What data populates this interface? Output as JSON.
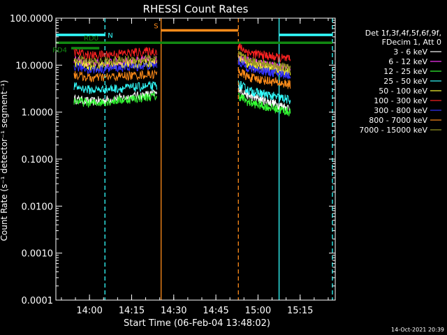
{
  "chart_data": {
    "type": "line",
    "title": "RHESSI Count Rates",
    "xlabel": "Start Time (06-Feb-04 13:48:02)",
    "ylabel": "Count Rate (s⁻¹ detector⁻¹ segment⁻¹)",
    "xscale": "time",
    "yscale": "log",
    "xlim": [
      "13:48:02",
      "15:27:30"
    ],
    "ylim": [
      0.0001,
      100
    ],
    "x_ticks": [
      "14:00",
      "14:15",
      "14:30",
      "14:45",
      "15:00",
      "15:15"
    ],
    "y_ticks": [
      "0.0001",
      "0.0010",
      "0.0100",
      "0.1000",
      "1.0000",
      "10.0000",
      "100.0000"
    ],
    "legend": {
      "placement": "right",
      "header": [
        "Det 1f,3f,4f,5f,6f,9f,",
        "FDecim 1, Att 0"
      ],
      "entries": [
        {
          "label": "3 - 6 keV",
          "color": "#ffffff"
        },
        {
          "label": "6 - 12 keV",
          "color": "#ff33ff"
        },
        {
          "label": "12 - 25 keV",
          "color": "#33ff33"
        },
        {
          "label": "25 - 50 keV",
          "color": "#33ffff"
        },
        {
          "label": "50 - 100 keV",
          "color": "#ffff33"
        },
        {
          "label": "100 - 300 keV",
          "color": "#ff2222"
        },
        {
          "label": "300 - 800 keV",
          "color": "#3333ff"
        },
        {
          "label": "800 - 7000 keV",
          "color": "#ff8c1a"
        },
        {
          "label": "7000 - 15000 keV",
          "color": "#999922"
        }
      ]
    },
    "series": [
      {
        "name": "3 - 6 keV",
        "color": "#ffffff",
        "segments": [
          {
            "start": "13:54:30",
            "end": "14:24:00",
            "v0": 1.5,
            "v1": 2.5
          },
          {
            "start": "14:53:00",
            "end": "15:11:30",
            "v0": 2.6,
            "v1": 1.2
          }
        ]
      },
      {
        "name": "6 - 12 keV",
        "color": "#ff33ff",
        "segments": [
          {
            "start": "13:54:30",
            "end": "14:24:00",
            "v0": 10.0,
            "v1": 13.0
          },
          {
            "start": "14:53:00",
            "end": "15:11:30",
            "v0": 13.0,
            "v1": 8.0
          }
        ]
      },
      {
        "name": "12 - 25 keV",
        "color": "#33ff33",
        "segments": [
          {
            "start": "13:54:30",
            "end": "14:24:00",
            "v0": 1.4,
            "v1": 2.2
          },
          {
            "start": "14:53:00",
            "end": "15:11:30",
            "v0": 1.8,
            "v1": 1.0
          }
        ]
      },
      {
        "name": "25 - 50 keV",
        "color": "#33ffff",
        "segments": [
          {
            "start": "13:54:30",
            "end": "14:24:00",
            "v0": 2.8,
            "v1": 3.6
          },
          {
            "start": "14:53:00",
            "end": "15:11:30",
            "v0": 3.2,
            "v1": 1.8
          }
        ]
      },
      {
        "name": "50 - 100 keV",
        "color": "#ffff33",
        "segments": [
          {
            "start": "13:54:30",
            "end": "14:24:00",
            "v0": 9.0,
            "v1": 11.5
          },
          {
            "start": "14:53:00",
            "end": "15:11:30",
            "v0": 11.0,
            "v1": 7.0
          }
        ]
      },
      {
        "name": "100 - 300 keV",
        "color": "#ff2222",
        "segments": [
          {
            "start": "13:54:30",
            "end": "14:24:00",
            "v0": 15.0,
            "v1": 20.0
          },
          {
            "start": "14:53:00",
            "end": "15:11:30",
            "v0": 20.0,
            "v1": 13.0
          }
        ]
      },
      {
        "name": "300 - 800 keV",
        "color": "#3333ff",
        "segments": [
          {
            "start": "13:54:30",
            "end": "14:24:00",
            "v0": 7.5,
            "v1": 10.0
          },
          {
            "start": "14:53:00",
            "end": "15:11:30",
            "v0": 9.5,
            "v1": 6.0
          }
        ]
      },
      {
        "name": "800 - 7000 keV",
        "color": "#ff8c1a",
        "segments": [
          {
            "start": "13:54:30",
            "end": "14:24:00",
            "v0": 5.0,
            "v1": 6.5
          },
          {
            "start": "14:53:00",
            "end": "15:11:30",
            "v0": 6.0,
            "v1": 3.8
          }
        ]
      },
      {
        "name": "7000 - 15000 keV",
        "color": "#999922",
        "segments": [
          {
            "start": "13:54:30",
            "end": "14:24:00",
            "v0": 11.0,
            "v1": 14.0
          },
          {
            "start": "14:53:00",
            "end": "15:11:30",
            "v0": 13.5,
            "v1": 8.5
          }
        ]
      }
    ],
    "flags": [
      {
        "label": "N",
        "color": "#33ffff",
        "value": 44,
        "intervals": [
          [
            "13:48:02",
            "14:05:30"
          ],
          [
            "15:07:30",
            "15:26:30"
          ]
        ]
      },
      {
        "label": "S",
        "color": "#ff8c1a",
        "value": 55,
        "intervals": [
          [
            "14:25:30",
            "14:53:00"
          ]
        ]
      },
      {
        "label": "RD0",
        "color": "#118811",
        "value": 30,
        "intervals": [
          [
            "13:48:02",
            "15:26:30"
          ]
        ]
      },
      {
        "label": "RD4",
        "color": "#118811",
        "value": 23,
        "intervals": [
          [
            "13:53:30",
            "14:03:30"
          ]
        ]
      }
    ],
    "markers": [
      {
        "time": "14:05:30",
        "color": "#33ffff",
        "style": "dashed"
      },
      {
        "time": "15:07:30",
        "color": "#33ffff",
        "style": "solid"
      },
      {
        "time": "15:26:30",
        "color": "#33ffff",
        "style": "dashed"
      },
      {
        "time": "14:25:30",
        "color": "#ff8c1a",
        "style": "solid"
      },
      {
        "time": "14:53:00",
        "color": "#ff8c1a",
        "style": "dashed"
      }
    ],
    "footer": "14-Oct-2021 20:39"
  }
}
